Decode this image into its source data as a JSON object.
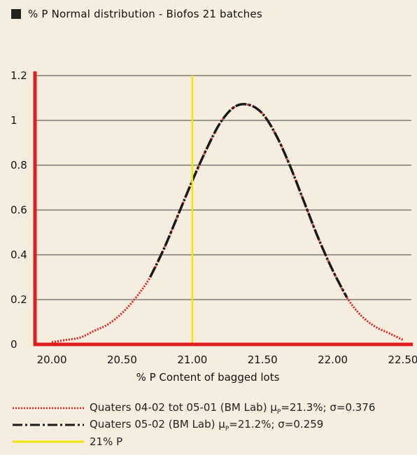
{
  "chart_data": {
    "type": "line",
    "title": "% P Normal distribution - Biofos 21 batches",
    "xlabel": "% P Content of bagged lots",
    "ylabel": "",
    "xlim": [
      19.88,
      22.56
    ],
    "ylim": [
      0,
      1.2
    ],
    "xticks": [
      "20.00",
      "20.50",
      "21.00",
      "21.50",
      "22.00",
      "22.50"
    ],
    "xtick_values": [
      20.0,
      20.5,
      21.0,
      21.5,
      22.0,
      22.5
    ],
    "yticks": [
      "0",
      "0.2",
      "0.4",
      "0.6",
      "0.8",
      "1",
      "1.2"
    ],
    "ytick_values": [
      0,
      0.2,
      0.4,
      0.6,
      0.8,
      1.0,
      1.2
    ],
    "grid": "horizontal",
    "series": [
      {
        "name": "Quaters 04-02 tot 05-01 (BM Lab)",
        "mu": "21.3%",
        "sigma": "0.376",
        "style": "dotted",
        "color": "#e01e1e",
        "x": [
          20.0,
          20.1,
          20.2,
          20.3,
          20.4,
          20.5,
          20.6,
          20.7,
          20.8,
          20.9,
          21.0,
          21.1,
          21.2,
          21.3,
          21.4,
          21.5,
          21.6,
          21.7,
          21.8,
          21.9,
          22.0,
          22.1,
          22.2,
          22.3,
          22.4,
          22.5
        ],
        "values": [
          0.01,
          0.02,
          0.03,
          0.06,
          0.09,
          0.14,
          0.21,
          0.3,
          0.43,
          0.58,
          0.73,
          0.87,
          0.99,
          1.06,
          1.07,
          1.03,
          0.93,
          0.79,
          0.63,
          0.47,
          0.33,
          0.21,
          0.13,
          0.08,
          0.05,
          0.02
        ]
      },
      {
        "name": "Quaters 05-02 (BM Lab)",
        "mu": "21.2%",
        "sigma": "0.259",
        "style": "dash-dot",
        "color": "#1a1a1a",
        "x": [
          20.7,
          20.8,
          20.9,
          21.0,
          21.1,
          21.2,
          21.3,
          21.4,
          21.5,
          21.6,
          21.7,
          21.8,
          21.9,
          22.0,
          22.1
        ],
        "values": [
          0.3,
          0.43,
          0.58,
          0.73,
          0.87,
          0.99,
          1.06,
          1.07,
          1.03,
          0.93,
          0.79,
          0.63,
          0.47,
          0.33,
          0.21
        ]
      }
    ],
    "reference_line": {
      "name": "21% P",
      "x": 21.0,
      "color": "#f2e600"
    }
  },
  "colors": {
    "axis": "#e01e1e",
    "grid": "#444444",
    "background": "#f5eedf"
  }
}
